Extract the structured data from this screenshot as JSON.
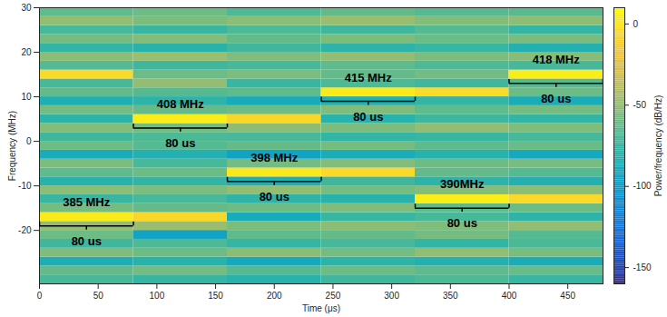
{
  "chart_data": {
    "type": "heatmap",
    "x_label": "Time (μs)",
    "y_label": "Frequency (MHz)",
    "xlim": [
      0,
      480
    ],
    "xticks": [
      0,
      50,
      100,
      150,
      200,
      250,
      300,
      350,
      400,
      450
    ],
    "ylim": [
      -32,
      30
    ],
    "yticks": [
      -20,
      -10,
      0,
      10,
      20,
      30
    ],
    "time_bins": [
      0,
      80,
      160,
      240,
      320,
      400,
      480
    ],
    "frequency_bins": [
      -32,
      -30,
      -28,
      -26,
      -24,
      -22,
      -20,
      -18,
      -16,
      -14,
      -12,
      -10,
      -8,
      -6,
      -4,
      -2,
      0,
      2,
      4,
      6,
      8,
      10,
      12,
      14,
      16,
      18,
      20,
      22,
      24,
      26,
      28,
      30
    ],
    "power": [
      [
        -70,
        -75,
        -80,
        -72,
        -68,
        -74
      ],
      [
        -62,
        -58,
        -66,
        -60,
        -64,
        -61
      ],
      [
        -85,
        -80,
        -90,
        -78,
        -82,
        -86
      ],
      [
        -55,
        -60,
        -52,
        -58,
        -50,
        -57
      ],
      [
        -72,
        -68,
        -75,
        -70,
        -76,
        -69
      ],
      [
        -60,
        -95,
        -64,
        -62,
        -58,
        -66
      ],
      [
        -50,
        -48,
        -56,
        -52,
        -55,
        -50
      ],
      [
        3,
        -6,
        -88,
        -74,
        -70,
        -78
      ],
      [
        -58,
        -62,
        -60,
        -55,
        -64,
        -60
      ],
      [
        -74,
        -70,
        -78,
        -80,
        4,
        -5
      ],
      [
        -52,
        -56,
        -50,
        -58,
        -54,
        -52
      ],
      [
        -80,
        -76,
        -84,
        -72,
        -78,
        -82
      ],
      [
        -64,
        -60,
        2,
        -5,
        -62,
        -66
      ],
      [
        -56,
        -70,
        -58,
        -54,
        -60,
        -57
      ],
      [
        -88,
        -82,
        -95,
        -86,
        -80,
        -90
      ],
      [
        -60,
        -66,
        -62,
        -58,
        -64,
        -61
      ],
      [
        -72,
        -68,
        -70,
        -76,
        -74,
        -70
      ],
      [
        -54,
        -58,
        -52,
        -56,
        -50,
        -55
      ],
      [
        -78,
        4,
        -6,
        -80,
        -72,
        -76
      ],
      [
        -58,
        -62,
        -60,
        -55,
        -64,
        -58
      ],
      [
        -84,
        -78,
        -88,
        -82,
        -76,
        -86
      ],
      [
        -62,
        -66,
        -64,
        3,
        -4,
        -60
      ],
      [
        -70,
        -50,
        -74,
        -68,
        -72,
        -66
      ],
      [
        -5,
        -60,
        -56,
        -62,
        -58,
        4
      ],
      [
        -66,
        -72,
        -70,
        -64,
        -68,
        -70
      ],
      [
        -52,
        -48,
        -55,
        -50,
        -56,
        -53
      ],
      [
        -76,
        -80,
        -72,
        -78,
        -74,
        -82
      ],
      [
        -58,
        -54,
        -62,
        -56,
        -60,
        -57
      ],
      [
        -70,
        -74,
        -68,
        -72,
        -66,
        -75
      ],
      [
        -50,
        -56,
        -52,
        -48,
        -54,
        -51
      ],
      [
        -64,
        -60,
        -68,
        -62,
        -66,
        -65
      ]
    ],
    "colorbar_label": "Power/frequency (dB/Hz)",
    "colorbar_lim": [
      -160,
      10
    ],
    "colorbar_ticks": [
      -150,
      -100,
      -50,
      0
    ],
    "annotations": [
      {
        "text": "385 MHz",
        "x0": 0,
        "x1": 80,
        "text_y": -13.7,
        "bracket_y": -19,
        "span_label": "80 us",
        "span_label_y": -22.5
      },
      {
        "text": "408 MHz",
        "x0": 80,
        "x1": 160,
        "text_y": 8.3,
        "bracket_y": 3,
        "span_label": "80 us",
        "span_label_y": -0.5
      },
      {
        "text": "398 MHz",
        "x0": 160,
        "x1": 240,
        "text_y": -3.7,
        "bracket_y": -9,
        "span_label": "80 us",
        "span_label_y": -12.5
      },
      {
        "text": "415 MHz",
        "x0": 240,
        "x1": 320,
        "text_y": 14.3,
        "bracket_y": 9,
        "span_label": "80 us",
        "span_label_y": 5.5
      },
      {
        "text": "390MHz",
        "x0": 320,
        "x1": 400,
        "text_y": -9.7,
        "bracket_y": -15,
        "span_label": "80 us",
        "span_label_y": -18.5
      },
      {
        "text": "418 MHz",
        "x0": 400,
        "x1": 480,
        "text_y": 18.3,
        "bracket_y": 13,
        "span_label": "80 us",
        "span_label_y": 9.5
      }
    ]
  }
}
